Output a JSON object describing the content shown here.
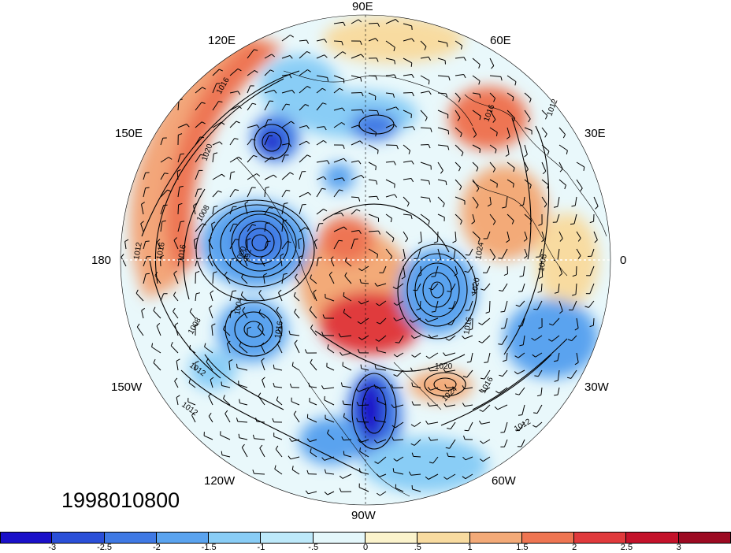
{
  "date_stamp": "1998010800",
  "longitude_labels": {
    "lon_90e": "90E",
    "lon_120e": "120E",
    "lon_60e": "60E",
    "lon_150e": "150E",
    "lon_30e": "30E",
    "lon_180": "180",
    "lon_0": "0",
    "lon_150w": "150W",
    "lon_30w": "30W",
    "lon_120w": "120W",
    "lon_60w": "60W",
    "lon_90w": "90W"
  },
  "contour_labels": [
    "1016",
    "1020",
    "1012",
    "1008",
    "1000",
    "992",
    "1016",
    "1016",
    "1012",
    "1008",
    "1012",
    "1004",
    "1016",
    "1024",
    "1020",
    "1016",
    "1008",
    "1020",
    "1024",
    "1016",
    "1012",
    "1016",
    "1012"
  ],
  "colorbar": {
    "ticks": [
      "-3",
      "-2.5",
      "-2",
      "-1.5",
      "-1",
      "-.5",
      "0",
      ".5",
      "1",
      "1.5",
      "2",
      "2.5",
      "3"
    ],
    "colors": [
      "#1a10c9",
      "#2a4fd8",
      "#3f79e4",
      "#5aa3ef",
      "#89cdf6",
      "#bde9fa",
      "#e4f7fb",
      "#fbf3cc",
      "#f8dba0",
      "#f3aa78",
      "#ee7552",
      "#e03a3c",
      "#c4122a",
      "#9c0a22"
    ]
  },
  "colors": {
    "land_outline": "#000000",
    "isobar": "#000000",
    "background": "#ffffff"
  }
}
